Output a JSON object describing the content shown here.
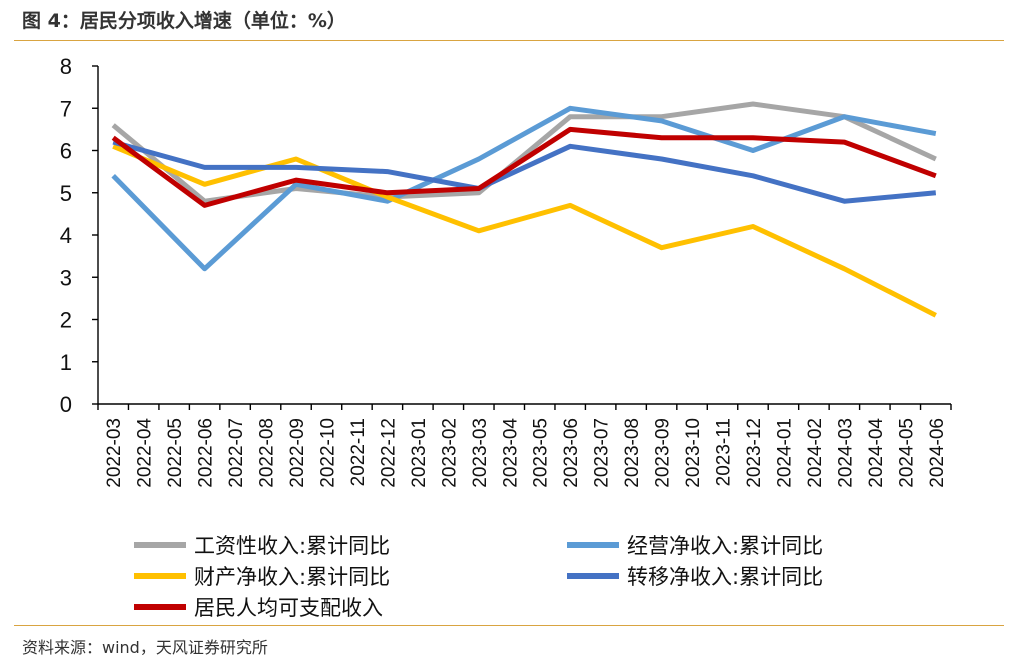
{
  "title": "图 4：居民分项收入增速（单位：%）",
  "source": "资料来源：wind，天风证券研究所",
  "chart_data": {
    "type": "line",
    "x": [
      "2022-03",
      "2022-04",
      "2022-05",
      "2022-06",
      "2022-07",
      "2022-08",
      "2022-09",
      "2022-10",
      "2022-11",
      "2022-12",
      "2023-01",
      "2023-02",
      "2023-03",
      "2023-04",
      "2023-05",
      "2023-06",
      "2023-07",
      "2023-08",
      "2023-09",
      "2023-10",
      "2023-11",
      "2023-12",
      "2024-01",
      "2024-02",
      "2024-03",
      "2024-04",
      "2024-05",
      "2024-06"
    ],
    "ylim": [
      0,
      8
    ],
    "yticks": [
      0,
      1,
      2,
      3,
      4,
      5,
      6,
      7,
      8
    ],
    "legend_position": "bottom",
    "series": [
      {
        "name": "工资性收入:累计同比",
        "color": "#a6a6a6",
        "points": [
          [
            0,
            6.6
          ],
          [
            3,
            4.8
          ],
          [
            6,
            5.1
          ],
          [
            9,
            4.9
          ],
          [
            12,
            5.0
          ],
          [
            15,
            6.8
          ],
          [
            18,
            6.8
          ],
          [
            21,
            7.1
          ],
          [
            24,
            6.8
          ],
          [
            27,
            5.8
          ]
        ]
      },
      {
        "name": "经营净收入:累计同比",
        "color": "#5b9bd5",
        "points": [
          [
            0,
            5.4
          ],
          [
            3,
            3.2
          ],
          [
            6,
            5.2
          ],
          [
            9,
            4.8
          ],
          [
            12,
            5.8
          ],
          [
            15,
            7.0
          ],
          [
            18,
            6.7
          ],
          [
            21,
            6.0
          ],
          [
            24,
            6.8
          ],
          [
            27,
            6.4
          ]
        ]
      },
      {
        "name": "财产净收入:累计同比",
        "color": "#ffc000",
        "points": [
          [
            0,
            6.1
          ],
          [
            3,
            5.2
          ],
          [
            6,
            5.8
          ],
          [
            9,
            4.9
          ],
          [
            12,
            4.1
          ],
          [
            15,
            4.7
          ],
          [
            18,
            3.7
          ],
          [
            21,
            4.2
          ],
          [
            24,
            3.2
          ],
          [
            27,
            2.1
          ]
        ]
      },
      {
        "name": "转移净收入:累计同比",
        "color": "#4472c4",
        "points": [
          [
            0,
            6.2
          ],
          [
            3,
            5.6
          ],
          [
            6,
            5.6
          ],
          [
            9,
            5.5
          ],
          [
            12,
            5.1
          ],
          [
            15,
            6.1
          ],
          [
            18,
            5.8
          ],
          [
            21,
            5.4
          ],
          [
            24,
            4.8
          ],
          [
            27,
            5.0
          ]
        ]
      },
      {
        "name": "居民人均可支配收入",
        "color": "#c00000",
        "points": [
          [
            0,
            6.3
          ],
          [
            3,
            4.7
          ],
          [
            6,
            5.3
          ],
          [
            9,
            5.0
          ],
          [
            12,
            5.1
          ],
          [
            15,
            6.5
          ],
          [
            18,
            6.3
          ],
          [
            21,
            6.3
          ],
          [
            24,
            6.2
          ],
          [
            27,
            5.4
          ]
        ]
      }
    ]
  }
}
